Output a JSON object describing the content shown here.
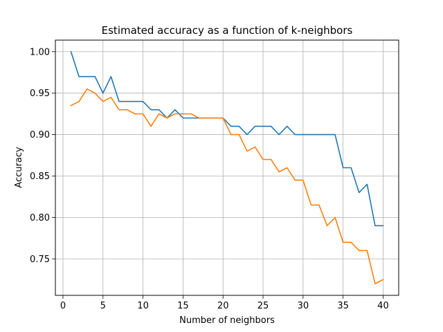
{
  "chart_data": {
    "type": "line",
    "title": "Estimated accuracy as a function of k-neighbors",
    "xlabel": "Number of neighbors",
    "ylabel": "Accuracy",
    "xlim": [
      -0.95,
      41.95
    ],
    "ylim": [
      0.706,
      1.014
    ],
    "grid": true,
    "xticks": [
      0,
      5,
      10,
      15,
      20,
      25,
      30,
      35,
      40
    ],
    "yticks": [
      0.75,
      0.8,
      0.85,
      0.9,
      0.95,
      1.0
    ],
    "ytick_labels": [
      "0.75",
      "0.80",
      "0.85",
      "0.90",
      "0.95",
      "1.00"
    ],
    "x": [
      1,
      2,
      3,
      4,
      5,
      6,
      7,
      8,
      9,
      10,
      11,
      12,
      13,
      14,
      15,
      16,
      17,
      18,
      19,
      20,
      21,
      22,
      23,
      24,
      25,
      26,
      27,
      28,
      29,
      30,
      31,
      32,
      33,
      34,
      35,
      36,
      37,
      38,
      39,
      40
    ],
    "series": [
      {
        "color": "#1f77b4",
        "values": [
          1.0,
          0.97,
          0.97,
          0.97,
          0.95,
          0.97,
          0.94,
          0.94,
          0.94,
          0.94,
          0.93,
          0.93,
          0.92,
          0.93,
          0.92,
          0.92,
          0.92,
          0.92,
          0.92,
          0.92,
          0.91,
          0.91,
          0.9,
          0.91,
          0.91,
          0.91,
          0.9,
          0.91,
          0.9,
          0.9,
          0.9,
          0.9,
          0.9,
          0.9,
          0.86,
          0.86,
          0.83,
          0.84,
          0.79,
          0.79
        ]
      },
      {
        "color": "#ff7f0e",
        "values": [
          0.935,
          0.94,
          0.955,
          0.95,
          0.94,
          0.945,
          0.93,
          0.93,
          0.925,
          0.925,
          0.91,
          0.925,
          0.92,
          0.925,
          0.925,
          0.925,
          0.92,
          0.92,
          0.92,
          0.92,
          0.9,
          0.9,
          0.88,
          0.885,
          0.87,
          0.87,
          0.855,
          0.86,
          0.845,
          0.845,
          0.815,
          0.815,
          0.79,
          0.8,
          0.77,
          0.77,
          0.76,
          0.76,
          0.72,
          0.725
        ]
      }
    ]
  }
}
